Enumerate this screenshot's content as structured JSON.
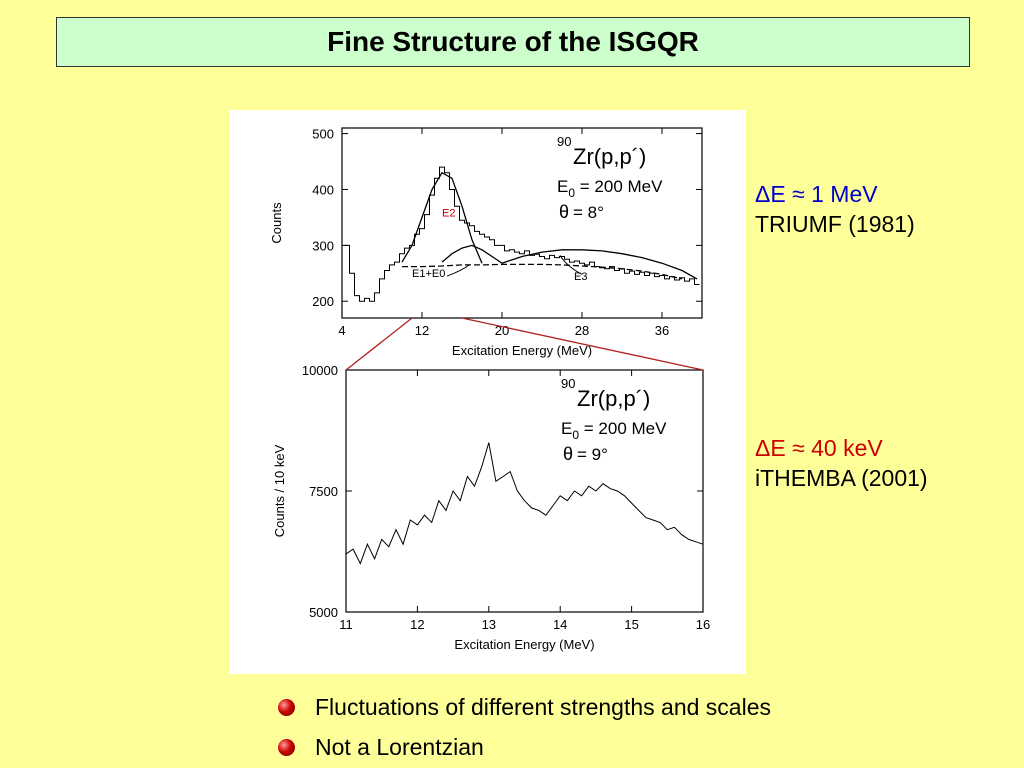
{
  "slide": {
    "title": "Fine Structure of the ISGQR",
    "info_top": {
      "line1": "ΔE ≈ 1 MeV",
      "line2": "TRIUMF (1981)",
      "color_line1": "#0000cc"
    },
    "info_bottom": {
      "line1": "ΔE ≈ 40 keV",
      "line2": "iTHEMBA (2001)",
      "color_line1": "#cc0000"
    },
    "bullets": [
      "Fluctuations of different strengths and scales",
      "Not a Lorentzian"
    ]
  },
  "chart_data": [
    {
      "type": "line",
      "xlabel": "Excitation Energy (MeV)",
      "ylabel": "Counts",
      "xlim": [
        4,
        40
      ],
      "ylim": [
        170,
        510
      ],
      "xticks": [
        4,
        12,
        20,
        28,
        36
      ],
      "yticks": [
        200,
        300,
        400,
        500
      ],
      "annotation": {
        "nucleus": "90",
        "reaction": "Zr(p,p´)",
        "energy": "E",
        "energy_sub": "0",
        "energy_value": " = 200 MeV",
        "angle_symbol": "θ",
        "angle_value": " = 8°"
      },
      "labels": {
        "e2": "E2",
        "e1e0": "E1+E0",
        "e3": "E3"
      },
      "series": [
        {
          "role": "data",
          "x": [
            4.5,
            5,
            5.5,
            6,
            6.5,
            7,
            7.5,
            8,
            8.5,
            9,
            9.5,
            10,
            10.5,
            11,
            11.5,
            12,
            12.5,
            13,
            13.5,
            14,
            14.5,
            15,
            15.5,
            16,
            16.5,
            17,
            17.5,
            18,
            18.5,
            19,
            19.5,
            20,
            20.5,
            21,
            21.5,
            22,
            22.5,
            23,
            23.5,
            24,
            24.5,
            25,
            25.5,
            26,
            26.5,
            27,
            27.5,
            28,
            28.5,
            29,
            29.5,
            30,
            30.5,
            31,
            31.5,
            32,
            32.5,
            33,
            33.5,
            34,
            34.5,
            35,
            35.5,
            36,
            36.5,
            37,
            37.5,
            38,
            38.5,
            39,
            39.5
          ],
          "y": [
            300,
            250,
            210,
            200,
            205,
            200,
            215,
            240,
            255,
            265,
            270,
            285,
            295,
            300,
            320,
            330,
            355,
            390,
            420,
            440,
            430,
            400,
            370,
            345,
            340,
            335,
            325,
            320,
            315,
            310,
            300,
            300,
            290,
            292,
            288,
            285,
            290,
            282,
            284,
            280,
            276,
            282,
            278,
            280,
            275,
            270,
            272,
            268,
            265,
            270,
            262,
            260,
            258,
            262,
            255,
            258,
            250,
            254,
            248,
            252,
            246,
            250,
            244,
            246,
            240,
            244,
            238,
            242,
            236,
            240,
            230
          ]
        },
        {
          "role": "E2",
          "x": [
            10,
            11,
            12,
            13,
            14,
            15,
            16,
            17,
            18
          ],
          "y": [
            270,
            300,
            350,
            400,
            430,
            420,
            370,
            310,
            268
          ]
        },
        {
          "role": "E1+E0",
          "x": [
            10,
            12,
            14,
            16,
            18,
            20,
            22,
            24,
            26,
            28,
            30,
            32,
            34,
            36,
            38
          ],
          "y": [
            262,
            262,
            263,
            265,
            265,
            266,
            266,
            266,
            265,
            263,
            261,
            258,
            254,
            248,
            240
          ]
        },
        {
          "role": "E3",
          "x": [
            20,
            22,
            24,
            26,
            28,
            30,
            32,
            34,
            36,
            38,
            39.5
          ],
          "y": [
            268,
            280,
            288,
            292,
            292,
            290,
            285,
            278,
            268,
            255,
            240
          ]
        },
        {
          "role": "component",
          "x": [
            14,
            15,
            16,
            17,
            18,
            19,
            20
          ],
          "y": [
            270,
            285,
            295,
            300,
            292,
            280,
            268
          ]
        }
      ]
    },
    {
      "type": "line",
      "xlabel": "Excitation Energy (MeV)",
      "ylabel": "Counts / 10 keV",
      "xlim": [
        11,
        16
      ],
      "ylim": [
        5000,
        10000
      ],
      "xticks": [
        11,
        12,
        13,
        14,
        15,
        16
      ],
      "yticks": [
        5000,
        7500,
        10000
      ],
      "annotation": {
        "nucleus": "90",
        "reaction": "Zr(p,p´)",
        "energy": "E",
        "energy_sub": "0",
        "energy_value": " = 200 MeV",
        "angle_symbol": "θ",
        "angle_value": " = 9°"
      },
      "series": [
        {
          "role": "data",
          "x": [
            11.0,
            11.1,
            11.2,
            11.3,
            11.4,
            11.5,
            11.6,
            11.7,
            11.8,
            11.9,
            12.0,
            12.1,
            12.2,
            12.3,
            12.4,
            12.5,
            12.6,
            12.7,
            12.8,
            12.9,
            13.0,
            13.1,
            13.2,
            13.3,
            13.4,
            13.5,
            13.6,
            13.7,
            13.8,
            13.9,
            14.0,
            14.1,
            14.2,
            14.3,
            14.4,
            14.5,
            14.6,
            14.7,
            14.8,
            14.9,
            15.0,
            15.1,
            15.2,
            15.3,
            15.4,
            15.5,
            15.6,
            15.7,
            15.8,
            15.9,
            16.0
          ],
          "y": [
            6200,
            6300,
            6000,
            6400,
            6100,
            6500,
            6350,
            6700,
            6400,
            6900,
            6800,
            7000,
            6850,
            7300,
            7100,
            7500,
            7300,
            7800,
            7600,
            8000,
            8500,
            7700,
            7800,
            7900,
            7500,
            7300,
            7150,
            7100,
            7000,
            7200,
            7400,
            7300,
            7500,
            7400,
            7600,
            7500,
            7650,
            7550,
            7500,
            7400,
            7250,
            7100,
            6950,
            6900,
            6850,
            6700,
            6750,
            6600,
            6500,
            6450,
            6400
          ]
        }
      ]
    }
  ]
}
